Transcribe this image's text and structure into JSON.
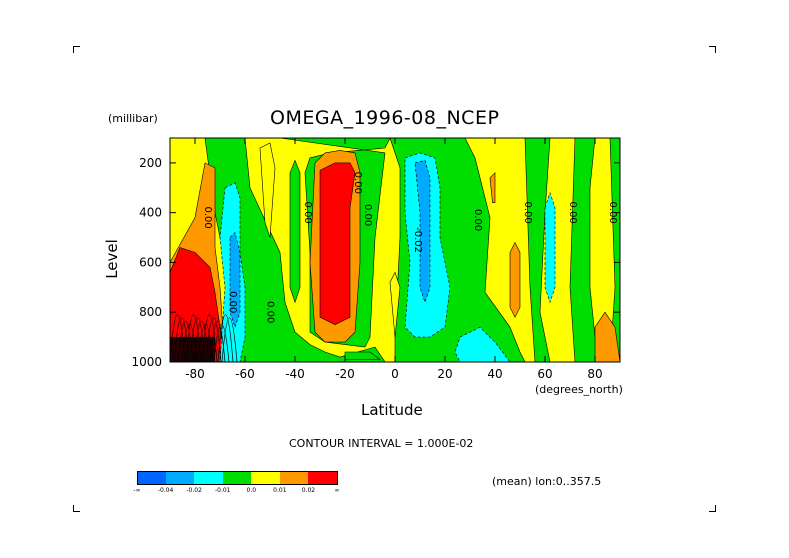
{
  "chart_data": {
    "type": "heatmap",
    "title": "OMEGA_1996-08_NCEP",
    "xlabel": "Latitude",
    "ylabel": "Level",
    "yunit": "(millibar)",
    "xunit": "(degrees_north)",
    "xlim": [
      -90,
      90
    ],
    "ylim": [
      1000,
      100
    ],
    "xticks": [
      "-80",
      "-60",
      "-40",
      "-20",
      "0",
      "20",
      "40",
      "60",
      "80"
    ],
    "xtick_values": [
      -80,
      -60,
      -40,
      -20,
      0,
      20,
      40,
      60,
      80
    ],
    "yticks": [
      "200",
      "400",
      "600",
      "800",
      "1000"
    ],
    "ytick_values": [
      200,
      400,
      600,
      800,
      1000
    ],
    "contour_interval": "CONTOUR INTERVAL = 1.000E-02",
    "mean_note": "(mean) lon:0..357.5",
    "contour_labels": [
      {
        "text": "0.00",
        "lat": -76,
        "lev": 420
      },
      {
        "text": "0.00",
        "lat": -66,
        "lev": 760
      },
      {
        "text": "0.00",
        "lat": -51,
        "lev": 800
      },
      {
        "text": "0.00",
        "lat": -36,
        "lev": 400
      },
      {
        "text": "0.00",
        "lat": -16,
        "lev": 280
      },
      {
        "text": "0.00",
        "lat": -12,
        "lev": 410
      },
      {
        "text": "-0.02",
        "lat": 8,
        "lev": 510
      },
      {
        "text": "0.00",
        "lat": 32,
        "lev": 430
      },
      {
        "text": "0.00",
        "lat": 52,
        "lev": 400
      },
      {
        "text": "0.00",
        "lat": 70,
        "lev": 400
      },
      {
        "text": "0.00",
        "lat": 86,
        "lev": 400
      }
    ],
    "colorbar": {
      "colors": [
        "#0066ff",
        "#00aaff",
        "#00ffff",
        "#00dd00",
        "#ffff00",
        "#ff9900",
        "#ff0000"
      ],
      "labels": [
        "-∞",
        "-0.04",
        "-0.02",
        "-0.01",
        "0.0",
        "0.01",
        "0.02",
        "∞"
      ]
    }
  }
}
